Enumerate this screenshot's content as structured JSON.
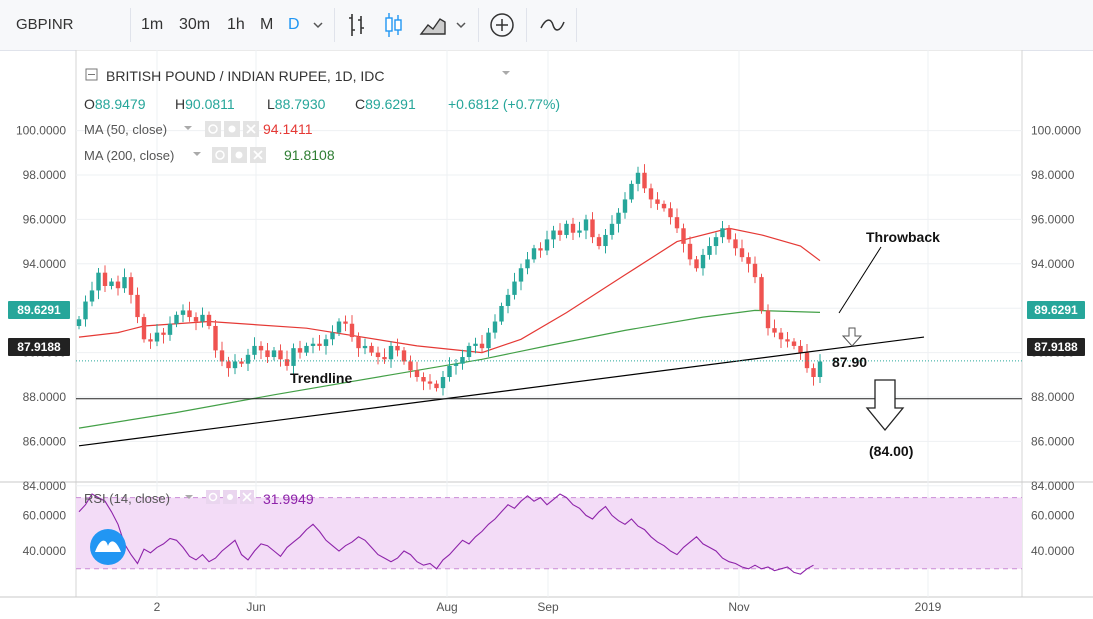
{
  "toolbar": {
    "symbol": "GBPINR",
    "intervals": [
      "1m",
      "30m",
      "1h",
      "M",
      "D"
    ],
    "active_interval": "D",
    "dropdown_icon": "chevron-down-icon",
    "tool_icons": [
      "bar-chart-icon",
      "candlestick-icon",
      "area-chart-icon",
      "add-indicator-icon",
      "compare-icon"
    ]
  },
  "colors": {
    "up": "#26a69a",
    "down": "#ef5350",
    "ma50": "#e53935",
    "ma200": "#43a047",
    "rsi": "#8e24aa",
    "rsi_band": "#f3dcf7",
    "trendline": "#000000",
    "price_line": "#26a69a"
  },
  "legend": {
    "title": "BRITISH POUND / INDIAN RUPEE, 1D, IDC",
    "o_label": "O",
    "o_value": "88.9479",
    "h_label": "H",
    "h_value": "90.0811",
    "l_label": "L",
    "l_value": "88.7930",
    "c_label": "C",
    "c_value": "89.6291",
    "change": "+0.6812 (+0.77%)",
    "ma50_label": "MA (50, close)",
    "ma50_value": "94.1411",
    "ma200_label": "MA (200, close)",
    "ma200_value": "91.8108",
    "rsi_label": "RSI (14, close)",
    "rsi_value": "31.9949"
  },
  "chart_data": {
    "type": "candlestick",
    "title": "BRITISH POUND / INDIAN RUPEE, 1D, IDC",
    "x_ticks": [
      "2",
      "Jun",
      "Aug",
      "Sep",
      "Nov",
      "2019"
    ],
    "y_ticks": [
      "84.0000",
      "86.0000",
      "88.0000",
      "90.0000",
      "92.0000",
      "94.0000",
      "96.0000",
      "98.0000",
      "100.0000"
    ],
    "ylim": [
      82.0,
      100.5
    ],
    "price_labels": {
      "last": "89.6291",
      "level": "87.9188"
    },
    "close_series": [
      91.5,
      92.3,
      92.8,
      93.6,
      93.0,
      93.2,
      92.9,
      93.4,
      92.6,
      91.6,
      90.6,
      90.5,
      90.9,
      90.8,
      91.3,
      91.7,
      91.9,
      91.6,
      91.4,
      91.7,
      91.2,
      90.1,
      89.6,
      89.3,
      89.6,
      89.5,
      89.9,
      90.3,
      90.1,
      89.8,
      90.1,
      89.7,
      89.4,
      90.2,
      90.0,
      90.3,
      90.4,
      90.3,
      90.6,
      90.9,
      91.4,
      91.3,
      90.7,
      90.2,
      90.3,
      90.0,
      89.8,
      89.7,
      90.3,
      90.1,
      89.6,
      89.2,
      88.9,
      88.7,
      88.6,
      88.4,
      88.9,
      89.4,
      89.5,
      89.8,
      90.3,
      90.4,
      90.2,
      90.9,
      91.4,
      92.1,
      92.6,
      93.2,
      93.8,
      94.2,
      94.7,
      94.6,
      95.1,
      95.5,
      95.3,
      95.8,
      95.4,
      95.5,
      96.0,
      95.2,
      94.8,
      95.3,
      95.8,
      96.3,
      96.9,
      97.6,
      98.1,
      97.4,
      96.9,
      96.7,
      96.5,
      96.1,
      95.6,
      94.9,
      94.2,
      93.8,
      94.4,
      94.8,
      95.2,
      95.6,
      95.1,
      94.7,
      94.3,
      94.0,
      93.4,
      91.9,
      91.1,
      90.9,
      90.6,
      90.5,
      90.3,
      90.0,
      89.3,
      88.9,
      89.6
    ],
    "ma50_series": [
      [
        0,
        90.7
      ],
      [
        6,
        90.9
      ],
      [
        10,
        91.2
      ],
      [
        20,
        91.4
      ],
      [
        35,
        91.1
      ],
      [
        52,
        90.3
      ],
      [
        62,
        90.0
      ],
      [
        68,
        90.6
      ],
      [
        75,
        91.8
      ],
      [
        84,
        93.5
      ],
      [
        92,
        95.0
      ],
      [
        100,
        95.6
      ],
      [
        105,
        95.3
      ],
      [
        111,
        94.8
      ],
      [
        114,
        94.14
      ]
    ],
    "ma200_series": [
      [
        0,
        86.6
      ],
      [
        15,
        87.3
      ],
      [
        30,
        88.1
      ],
      [
        48,
        89.0
      ],
      [
        62,
        89.7
      ],
      [
        72,
        90.3
      ],
      [
        84,
        91.0
      ],
      [
        96,
        91.6
      ],
      [
        104,
        91.9
      ],
      [
        114,
        91.81
      ]
    ],
    "trendline": {
      "x1_index": 0,
      "y1": 85.8,
      "x2_index": 130,
      "y2": 90.7,
      "label": "Trendline"
    },
    "horizontal_level": 87.9188,
    "annotations": {
      "throwback": "Throwback",
      "target1": "87.90",
      "target2": "(84.00)"
    },
    "rsi": {
      "label": "RSI (14, close)",
      "y_ticks": [
        "40.0000",
        "60.0000"
      ],
      "ylim": [
        25,
        75
      ],
      "band": [
        30,
        70
      ],
      "values": [
        62,
        66,
        72,
        70,
        68,
        62,
        55,
        44,
        38,
        33,
        41,
        39,
        42,
        44,
        47,
        46,
        42,
        37,
        35,
        38,
        34,
        36,
        40,
        43,
        46,
        38,
        35,
        40,
        44,
        43,
        40,
        37,
        42,
        45,
        48,
        52,
        55,
        51,
        46,
        43,
        40,
        43,
        45,
        48,
        46,
        42,
        38,
        36,
        34,
        36,
        40,
        38,
        34,
        32,
        33,
        30,
        35,
        38,
        42,
        46,
        44,
        48,
        51,
        55,
        58,
        62,
        66,
        64,
        68,
        71,
        68,
        70,
        66,
        69,
        72,
        70,
        66,
        64,
        60,
        58,
        62,
        65,
        60,
        57,
        55,
        58,
        54,
        52,
        48,
        45,
        43,
        40,
        38,
        42,
        45,
        48,
        44,
        42,
        40,
        36,
        34,
        33,
        31,
        30,
        32,
        30,
        31,
        29,
        30,
        31,
        28,
        27,
        30,
        32
      ]
    }
  }
}
